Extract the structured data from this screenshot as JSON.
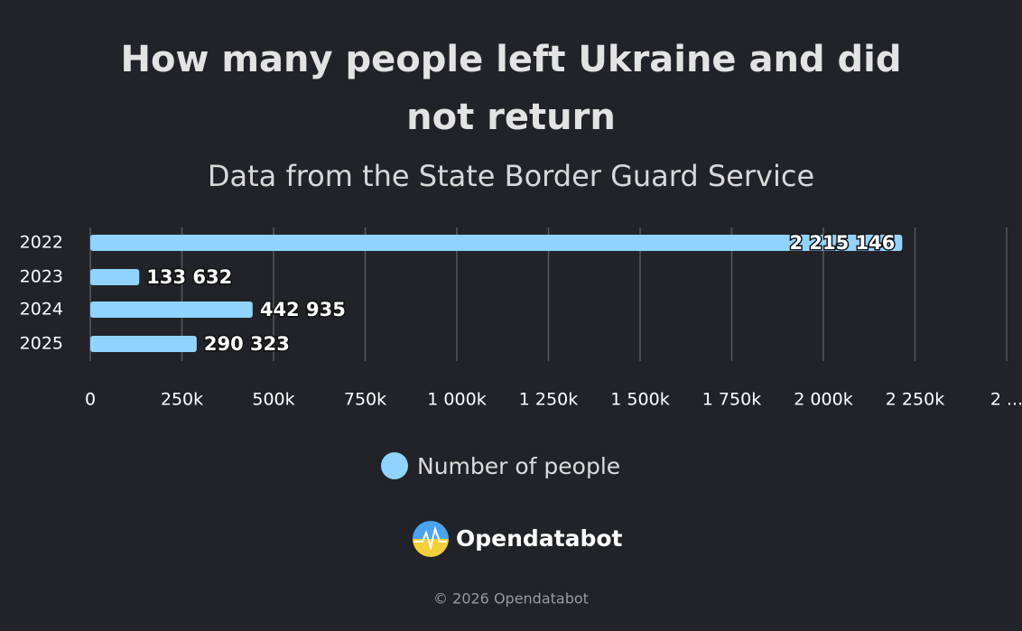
{
  "chart_data": {
    "type": "hbar",
    "title": "How many people left Ukraine and did not return",
    "subtitle": "Data from the State Border Guard Service",
    "categories": [
      "2022",
      "2023",
      "2024",
      "2025"
    ],
    "series": [
      {
        "name": "Number of people",
        "color": "#8fd3fe",
        "values": [
          2215146,
          133632,
          442935,
          290323
        ],
        "value_labels": [
          "2 215 146",
          "133 632",
          "442 935",
          "290 323"
        ]
      }
    ],
    "xlim": [
      0,
      2500000
    ],
    "xticks": [
      0,
      {
        "value": 250000,
        "label": "250k"
      },
      {
        "value": 500000,
        "label": "500k"
      },
      {
        "value": 750000,
        "label": "750k"
      },
      {
        "value": 1000000,
        "label": "1 000k"
      },
      {
        "value": 1250000,
        "label": "1 250k"
      },
      {
        "value": 1500000,
        "label": "1 500k"
      },
      {
        "value": 1750000,
        "label": "1 750k"
      },
      {
        "value": 2000000,
        "label": "2 000k"
      },
      {
        "value": 2250000,
        "label": "2 250k"
      },
      {
        "value": 2500000,
        "label": "2 ..."
      }
    ],
    "grid": true,
    "legend": "bottom",
    "brand": "Opendatabot",
    "copyright": "© 2026 Opendatabot"
  }
}
